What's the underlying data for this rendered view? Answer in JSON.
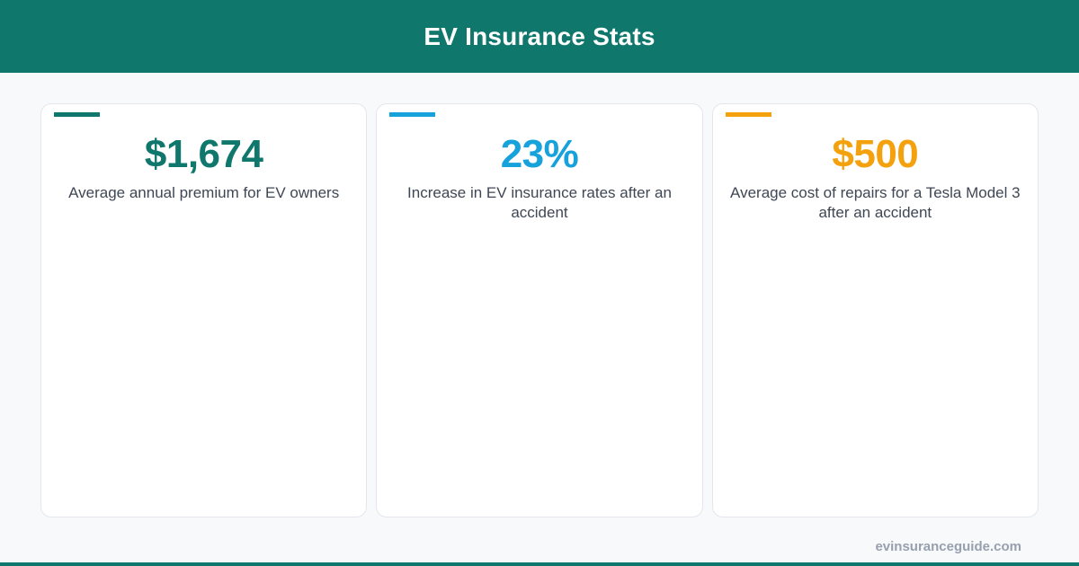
{
  "header": {
    "title": "EV Insurance Stats"
  },
  "colors": {
    "brand": "#10776c",
    "blue": "#17a2dc",
    "orange": "#f4a10e"
  },
  "stats": [
    {
      "value": "$1,674",
      "label": "Average annual premium for EV owners",
      "color": "#10776c"
    },
    {
      "value": "23%",
      "label": "Increase in EV insurance rates after an accident",
      "color": "#17a2dc"
    },
    {
      "value": "$500",
      "label": "Average cost of repairs for a Tesla Model 3 after an accident",
      "color": "#f4a10e"
    }
  ],
  "footer": {
    "site": "evinsuranceguide.com"
  }
}
